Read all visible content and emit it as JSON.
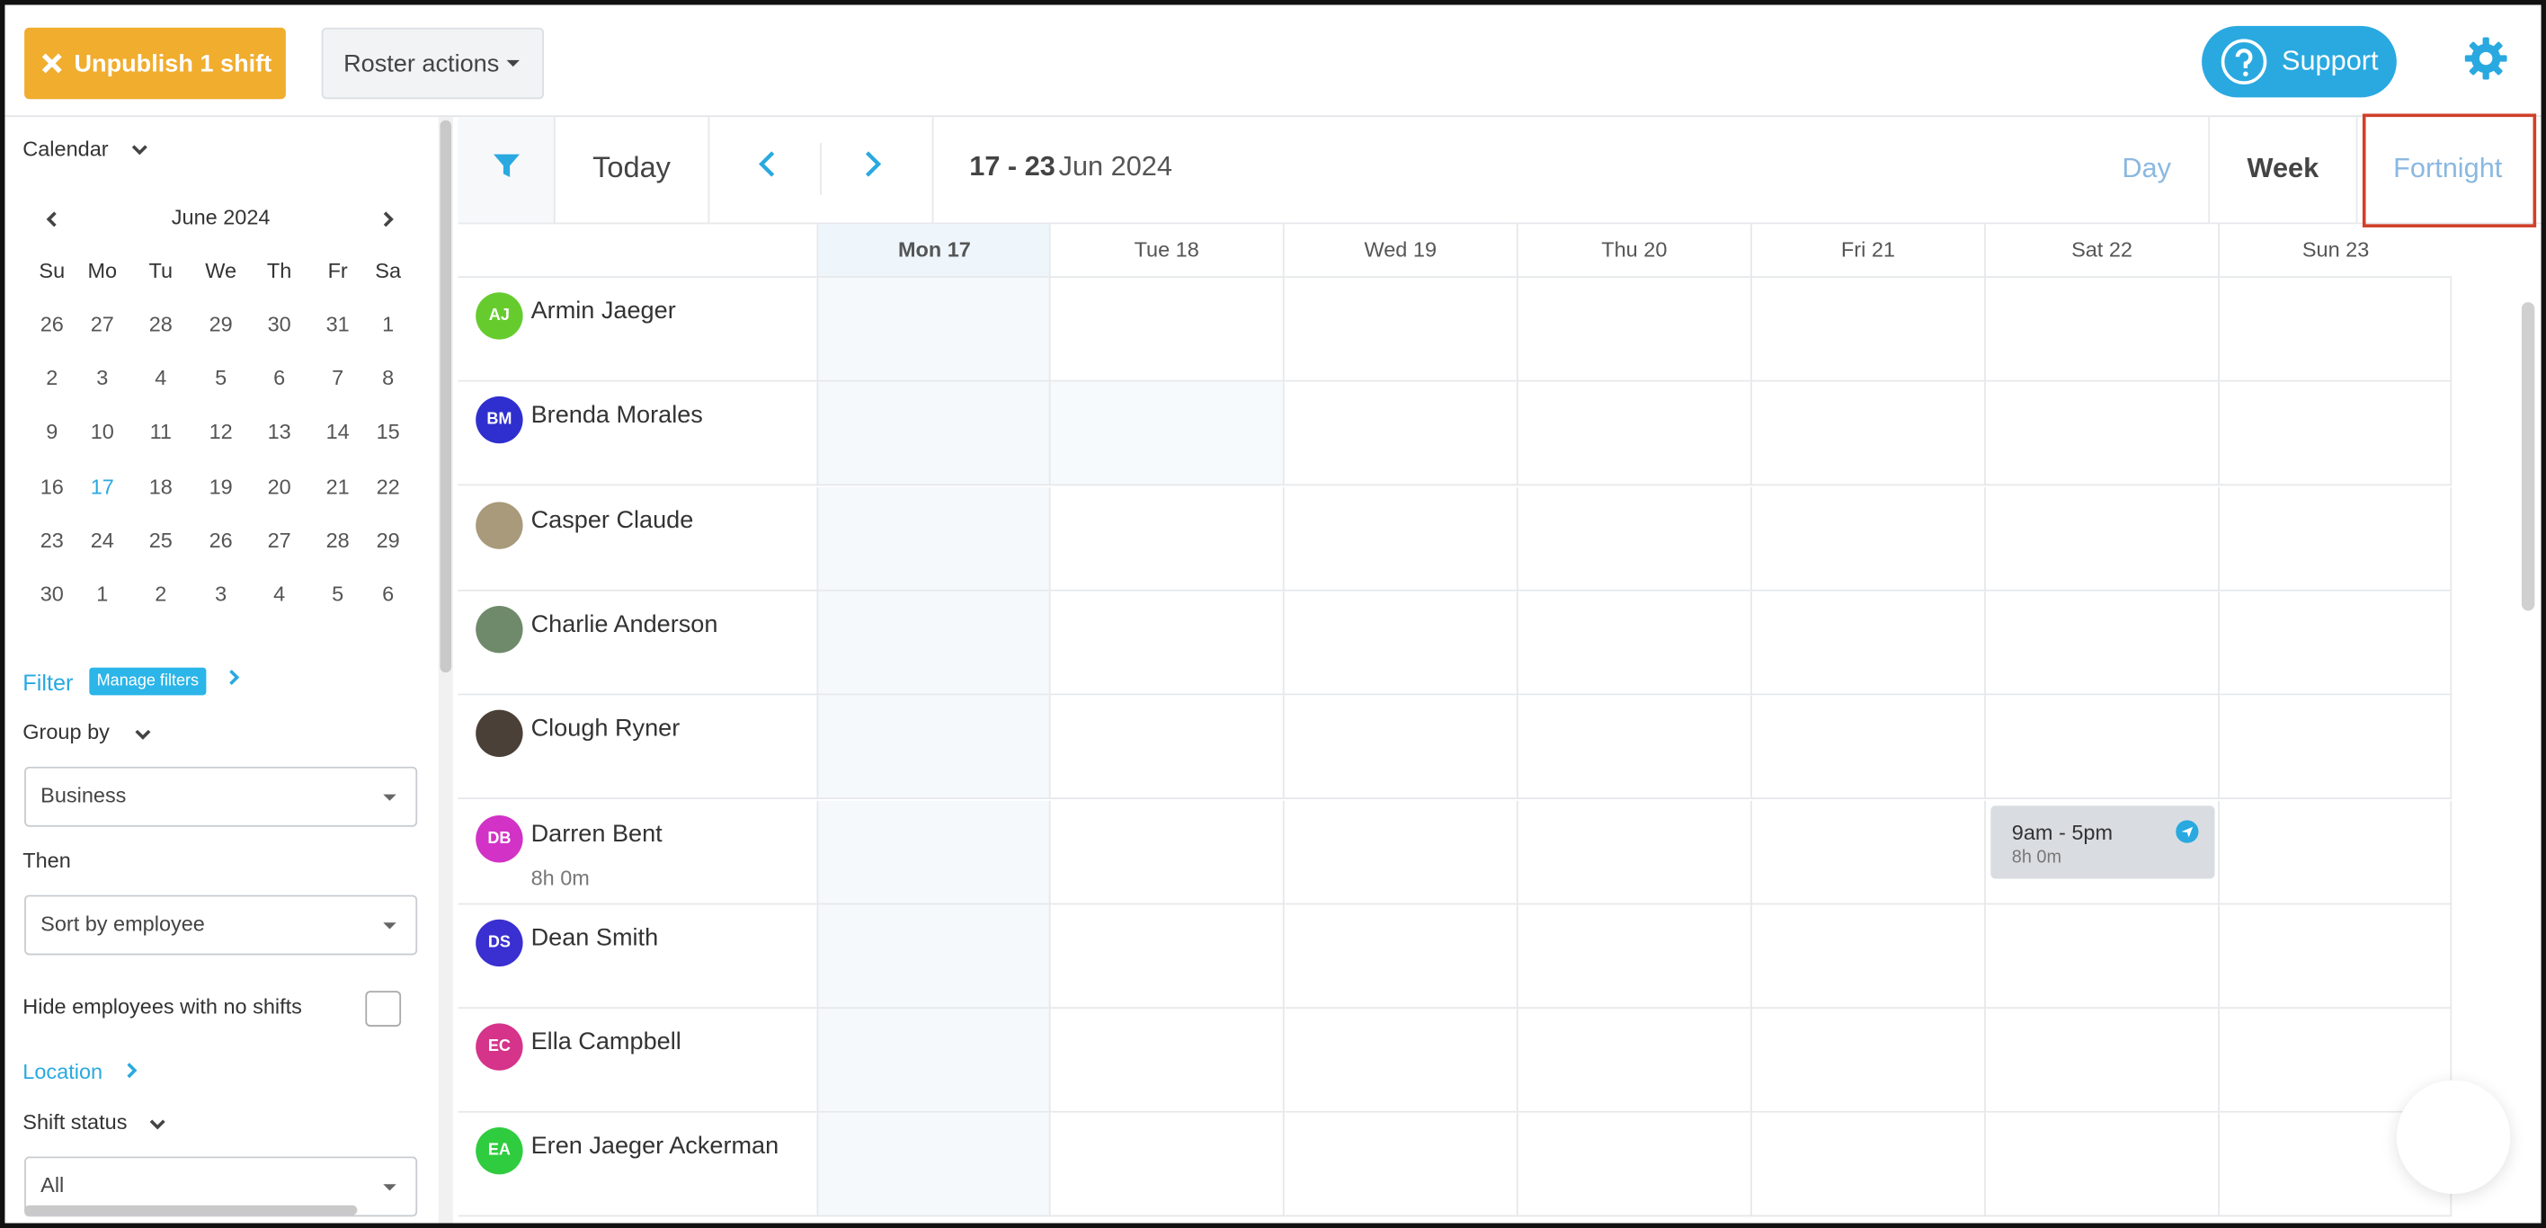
{
  "toolbar": {
    "unpublish": "Unpublish 1 shift",
    "roster_actions": "Roster actions",
    "support": "Support"
  },
  "sidebar": {
    "calendar_label": "Calendar",
    "month": "June 2024",
    "weekdays": [
      "Su",
      "Mo",
      "Tu",
      "We",
      "Th",
      "Fr",
      "Sa"
    ],
    "weeks": [
      [
        26,
        27,
        28,
        29,
        30,
        31,
        1
      ],
      [
        2,
        3,
        4,
        5,
        6,
        7,
        8
      ],
      [
        9,
        10,
        11,
        12,
        13,
        14,
        15
      ],
      [
        16,
        17,
        18,
        19,
        20,
        21,
        22
      ],
      [
        23,
        24,
        25,
        26,
        27,
        28,
        29
      ],
      [
        30,
        1,
        2,
        3,
        4,
        5,
        6
      ]
    ],
    "selected_date": 17,
    "filter_label": "Filter",
    "manage_filters": "Manage filters",
    "group_by_label": "Group by",
    "group_by_value": "Business",
    "then_label": "Then",
    "then_value": "Sort by employee",
    "hide_label": "Hide employees with no shifts",
    "location_label": "Location",
    "shift_status_label": "Shift status",
    "shift_status_value": "All"
  },
  "roster": {
    "today": "Today",
    "range_bold": "17 - 23",
    "range_rest": "Jun 2024",
    "views": [
      "Day",
      "Week",
      "Fortnight"
    ],
    "days": [
      "Mon 17",
      "Tue 18",
      "Wed 19",
      "Thu 20",
      "Fri 21",
      "Sat 22",
      "Sun 23"
    ],
    "employees": [
      {
        "initials": "AJ",
        "name": "Armin Jaeger",
        "color": "#66cc2e"
      },
      {
        "initials": "BM",
        "name": "Brenda Morales",
        "color": "#2f2fcf"
      },
      {
        "name": "Casper Claude",
        "color": "#a89a7a"
      },
      {
        "name": "Charlie Anderson",
        "color": "#6f8a6a"
      },
      {
        "name": "Clough Ryner",
        "color": "#4a4038"
      },
      {
        "initials": "DB",
        "name": "Darren Bent",
        "hours": "8h 0m",
        "color": "#d232c6"
      },
      {
        "initials": "DS",
        "name": "Dean Smith",
        "color": "#3a2fd0"
      },
      {
        "initials": "EC",
        "name": "Ella Campbell",
        "color": "#d6338a"
      },
      {
        "initials": "EA",
        "name": "Eren Jaeger Ackerman",
        "color": "#2fcc3f"
      }
    ],
    "shift": {
      "employee": 5,
      "day": 5,
      "time": "9am - 5pm",
      "duration": "8h 0m"
    }
  }
}
